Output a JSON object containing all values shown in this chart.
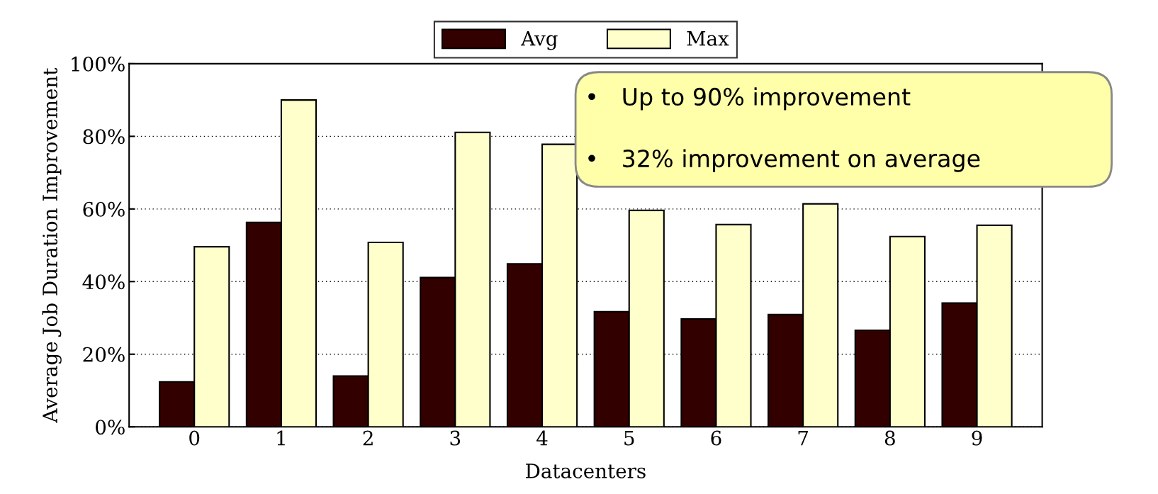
{
  "chart_data": {
    "type": "bar",
    "xlabel": "Datacenters",
    "ylabel": "Average Job Duration Improvement",
    "categories": [
      "0",
      "1",
      "2",
      "3",
      "4",
      "5",
      "6",
      "7",
      "8",
      "9"
    ],
    "series": [
      {
        "name": "Avg",
        "color": "#330000",
        "values": [
          12.4,
          56.3,
          14.0,
          41.1,
          44.9,
          31.7,
          29.7,
          30.9,
          26.6,
          34.1
        ]
      },
      {
        "name": "Max",
        "color": "#ffffcc",
        "values": [
          49.6,
          90.0,
          50.8,
          81.1,
          77.8,
          59.6,
          55.7,
          61.4,
          52.4,
          55.5
        ]
      }
    ],
    "ylim": [
      0,
      100
    ],
    "yticks": [
      {
        "value": 0,
        "label": "0%"
      },
      {
        "value": 20,
        "label": "20%"
      },
      {
        "value": 40,
        "label": "40%"
      },
      {
        "value": 60,
        "label": "60%"
      },
      {
        "value": 80,
        "label": "80%"
      },
      {
        "value": 100,
        "label": "100%"
      }
    ],
    "grid": "y",
    "legend": "top",
    "annotations": [
      "•   Up to 90% improvement",
      "•   32% improvement on average"
    ]
  }
}
